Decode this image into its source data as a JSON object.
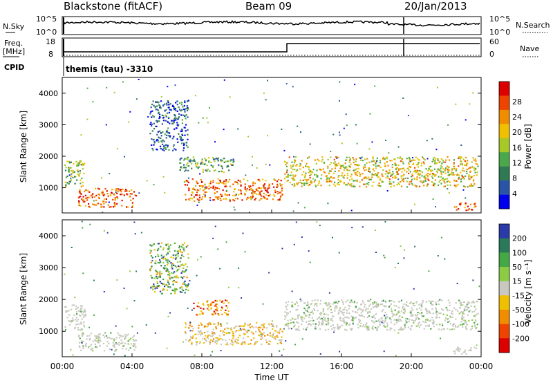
{
  "header": {
    "station": "Blackstone (fitACF)",
    "beam": "Beam 09",
    "date": "20/Jan/2013",
    "cpid_label": "CPID",
    "cpid_value": "themis (tau) -3310"
  },
  "top_panel": {
    "left_label": "N.Sky",
    "right_label": "N.Search",
    "left_ticks": [
      "10^5",
      "10^0"
    ],
    "right_ticks": [
      "10^5",
      "10^0"
    ]
  },
  "freq_panel": {
    "left_label": "Freq.",
    "left_unit": "[MHz]",
    "right_label": "Nave",
    "left_ticks": [
      "18",
      "8"
    ],
    "right_ticks": [
      "60",
      "0"
    ]
  },
  "colors": {
    "power": [
      "#0000ee",
      "#2a54a8",
      "#2f7a52",
      "#4aa84a",
      "#a8c828",
      "#f0c000",
      "#f08c00",
      "#ee4400",
      "#dd0000"
    ],
    "velocity_pos": [
      "#2a3aa8",
      "#2a7a5a",
      "#44a844",
      "#8ccc44"
    ],
    "ground": "#c8c8c0",
    "velocity_neg": [
      "#f0c000",
      "#f08c00",
      "#ee4400",
      "#dd0000"
    ]
  },
  "chart_data": [
    {
      "type": "heatmap",
      "name": "power",
      "ylabel": "Slant Range [km]",
      "yticks": [
        "1000",
        "2000",
        "3000",
        "4000"
      ],
      "ylim": [
        200,
        4500
      ],
      "xlim": [
        0,
        24
      ],
      "colorbar": {
        "label": "Power [dB]",
        "ticks": [
          "4",
          "8",
          "12",
          "16",
          "20",
          "24",
          "28"
        ]
      },
      "regions": [
        {
          "x": [
            0.1,
            1.3
          ],
          "y": [
            1050,
            1900
          ],
          "v": 0.45
        },
        {
          "x": [
            0.9,
            4.2
          ],
          "y": [
            400,
            1000
          ],
          "v": 0.85
        },
        {
          "x": [
            5.0,
            7.2
          ],
          "y": [
            2200,
            3800
          ],
          "v": 0.15
        },
        {
          "x": [
            6.7,
            9.8
          ],
          "y": [
            1500,
            2000
          ],
          "v": 0.35
        },
        {
          "x": [
            7.0,
            12.6
          ],
          "y": [
            600,
            1300
          ],
          "v": 0.8
        },
        {
          "x": [
            12.7,
            23.8
          ],
          "y": [
            1050,
            2000
          ],
          "v": 0.6
        },
        {
          "x": [
            22.4,
            23.7
          ],
          "y": [
            300,
            550
          ],
          "v": 0.85
        }
      ]
    },
    {
      "type": "heatmap",
      "name": "velocity",
      "ylabel": "Slant Range [km]",
      "yticks": [
        "1000",
        "2000",
        "3000",
        "4000"
      ],
      "ylim": [
        200,
        4500
      ],
      "xlim": [
        0,
        24
      ],
      "xlabel": "Time UT",
      "xticks": [
        "00:00",
        "04:00",
        "08:00",
        "12:00",
        "16:00",
        "20:00",
        "00:00"
      ],
      "colorbar": {
        "label": "Velocity [m s⁻¹]",
        "ticks": [
          "200",
          "100",
          "50",
          "15",
          "-15",
          "-50",
          "-100",
          "-200"
        ]
      },
      "regions": [
        {
          "x": [
            0.1,
            1.3
          ],
          "y": [
            1050,
            1900
          ],
          "v": "ground"
        },
        {
          "x": [
            0.9,
            4.2
          ],
          "y": [
            400,
            1000
          ],
          "v": "ground"
        },
        {
          "x": [
            5.0,
            7.2
          ],
          "y": [
            2200,
            3800
          ],
          "v": "mixed"
        },
        {
          "x": [
            7.5,
            9.5
          ],
          "y": [
            1500,
            2000
          ],
          "v": "neg"
        },
        {
          "x": [
            7.0,
            12.6
          ],
          "y": [
            600,
            1300
          ],
          "v": "negweak"
        },
        {
          "x": [
            12.7,
            23.8
          ],
          "y": [
            1050,
            2000
          ],
          "v": "ground"
        },
        {
          "x": [
            22.4,
            23.7
          ],
          "y": [
            300,
            550
          ],
          "v": "ground"
        }
      ]
    }
  ]
}
